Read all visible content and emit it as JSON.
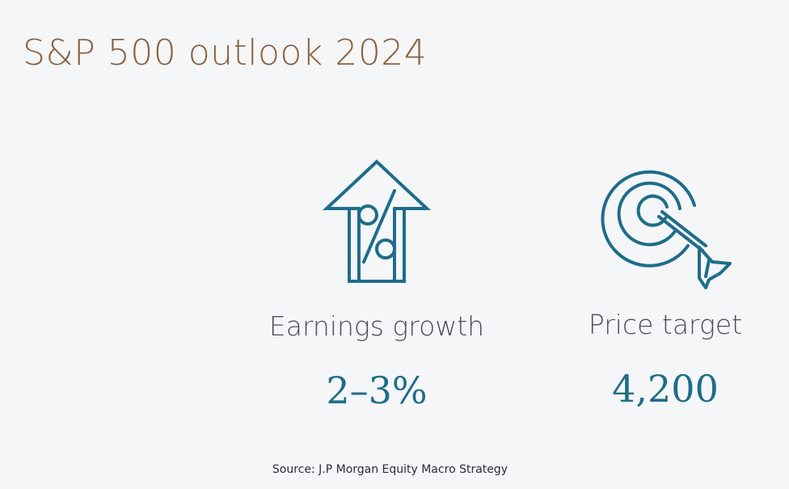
{
  "title": "S&P 500 outlook 2024",
  "metrics": [
    {
      "icon": "house-percent-arrow-icon",
      "label": "Earnings growth",
      "value": "2–3%"
    },
    {
      "icon": "target-dart-icon",
      "label": "Price target",
      "value": "4,200"
    }
  ],
  "source": "Source: J.P Morgan Equity Macro Strategy",
  "colors": {
    "title": "#8a623f",
    "accent": "#1e6d8a",
    "label": "#4b4f55",
    "background": "#f5f6f8"
  }
}
